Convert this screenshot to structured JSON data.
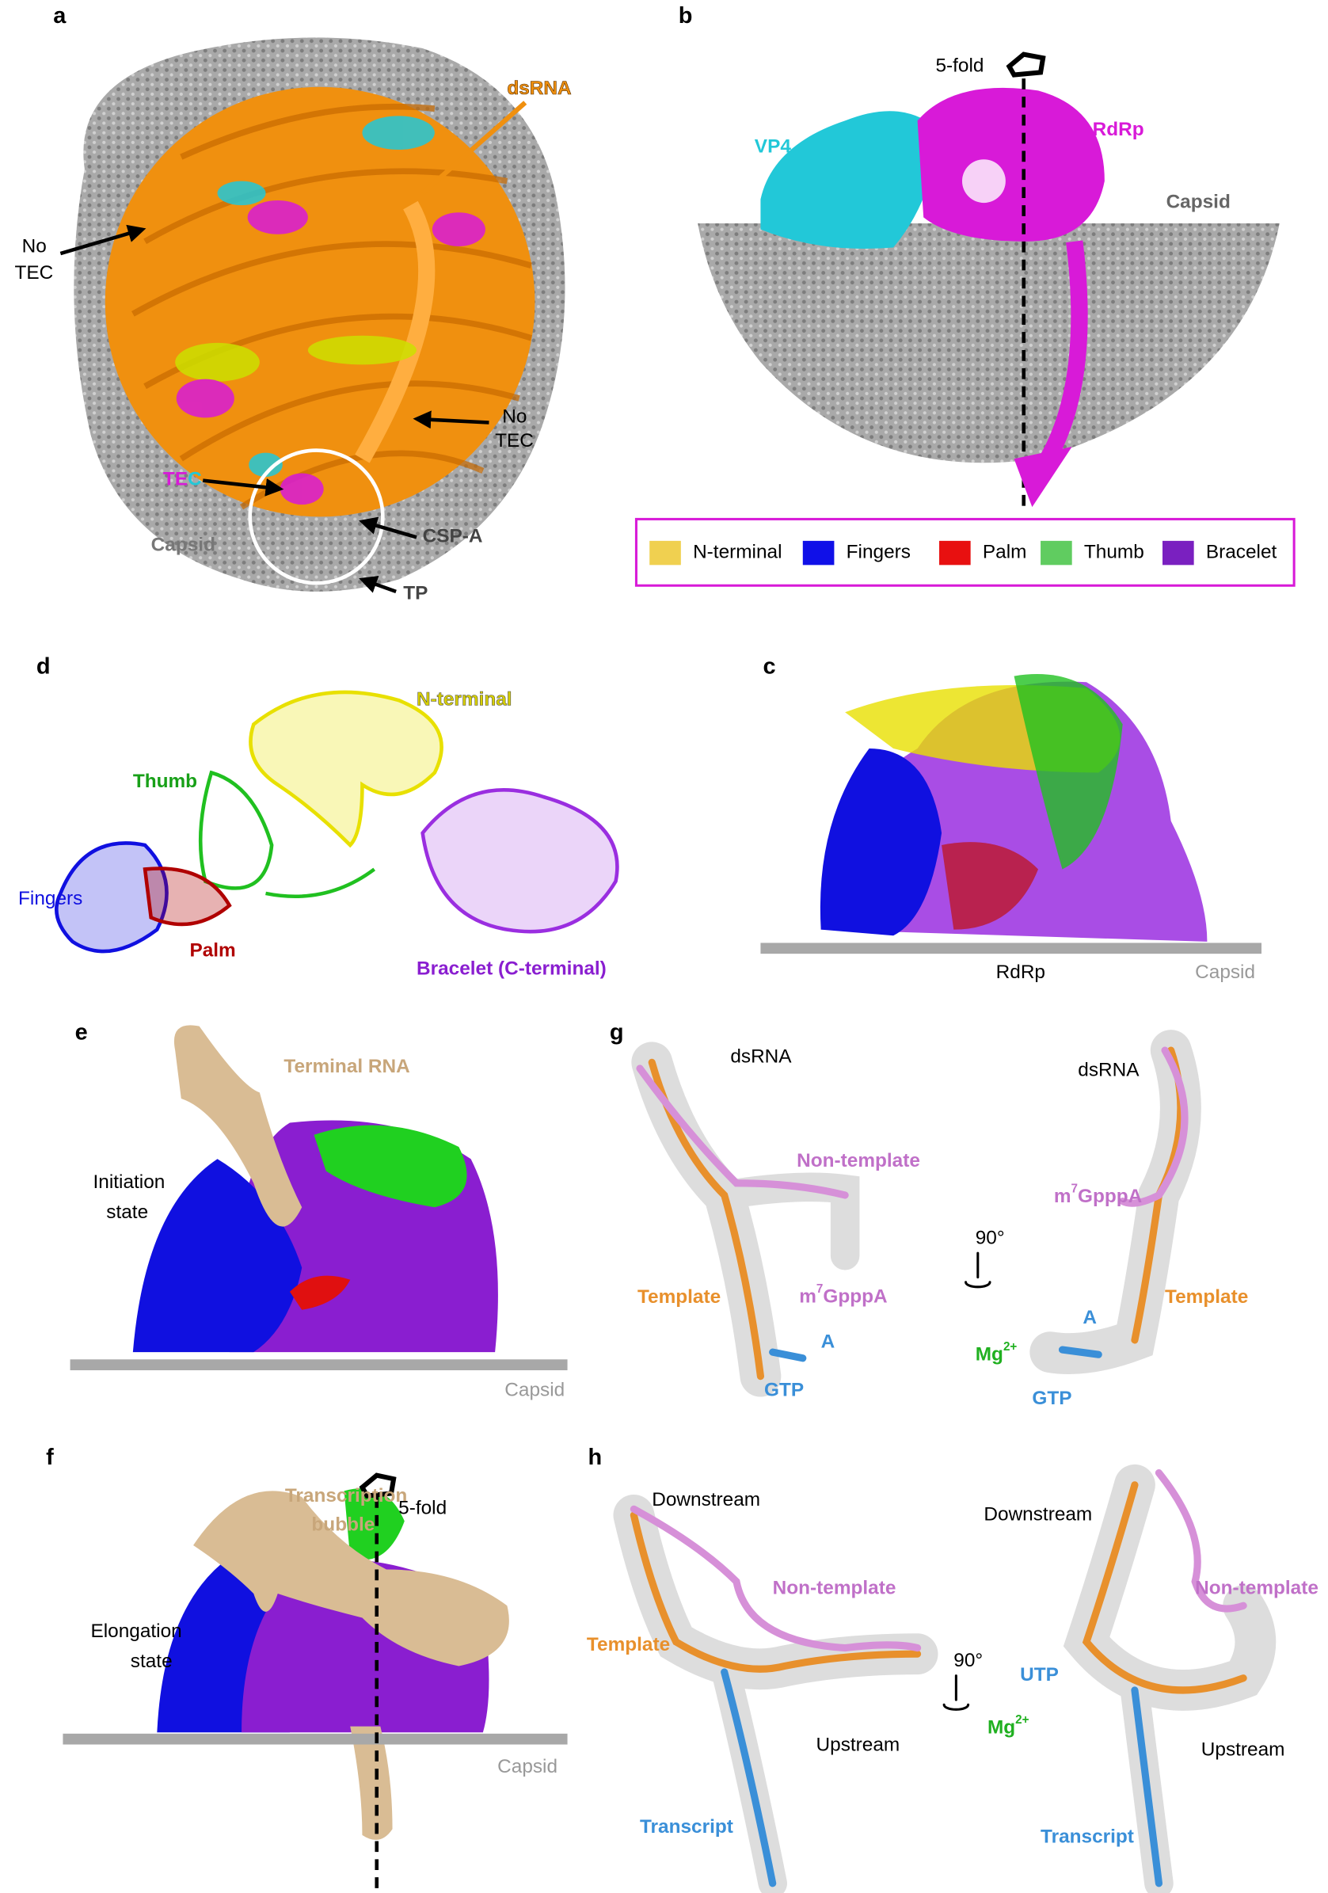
{
  "panel_a": {
    "letter": "a",
    "dsrna": "dsRNA",
    "no_tec_left": [
      "No",
      "TEC"
    ],
    "no_tec_right": [
      "No",
      "TEC"
    ],
    "tec": [
      "TE",
      "C"
    ],
    "capsid": "Capsid",
    "csp_a": "CSP-A",
    "tp": "TP"
  },
  "panel_b": {
    "letter": "b",
    "five_fold": "5-fold",
    "vp4": "VP4",
    "rdrp": "RdRp",
    "capsid": "Capsid",
    "legend": [
      "N-terminal",
      "Fingers",
      "Palm",
      "Thumb",
      "Bracelet"
    ]
  },
  "panel_d": {
    "letter": "d",
    "n_terminal": "N-terminal",
    "thumb": "Thumb",
    "fingers": "Fingers",
    "palm": "Palm",
    "bracelet": "Bracelet (C-terminal)"
  },
  "panel_c": {
    "letter": "c",
    "rdrp": "RdRp",
    "capsid": "Capsid"
  },
  "panel_e": {
    "letter": "e",
    "terminal_rna": "Terminal RNA",
    "state": [
      "Initiation",
      "state"
    ],
    "capsid": "Capsid"
  },
  "panel_g": {
    "letter": "g",
    "rotation": "90°",
    "left": {
      "dsrna": "dsRNA",
      "non_template": "Non-template",
      "template": "Template",
      "cap": {
        "base": "m",
        "sup": "7",
        "rest": "GpppA"
      },
      "a": "A",
      "gtp": "GTP"
    },
    "right": {
      "dsrna": "dsRNA",
      "cap": {
        "base": "m",
        "sup": "7",
        "rest": "GpppA"
      },
      "template": "Template",
      "a": "A",
      "mg": {
        "base": "Mg",
        "sup": "2+"
      },
      "gtp": "GTP"
    }
  },
  "panel_f": {
    "letter": "f",
    "bubble": [
      "Transcription",
      "bubble"
    ],
    "five_fold": "5-fold",
    "state": [
      "Elongation",
      "state"
    ],
    "capsid": "Capsid"
  },
  "panel_h": {
    "letter": "h",
    "rotation": "90°",
    "left": {
      "downstream": "Downstream",
      "non_template": "Non-template",
      "template": "Template",
      "upstream": "Upstream",
      "transcript": "Transcript"
    },
    "right": {
      "downstream": "Downstream",
      "non_template": "Non-template",
      "utp": "UTP",
      "mg": {
        "base": "Mg",
        "sup": "2+"
      },
      "upstream": "Upstream",
      "transcript": "Transcript"
    }
  }
}
